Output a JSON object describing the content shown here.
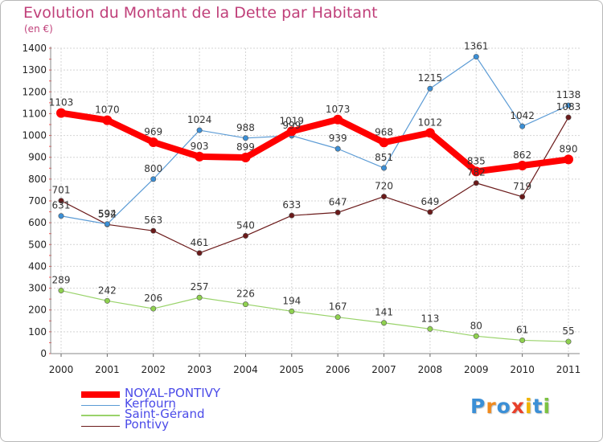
{
  "chart_data": {
    "type": "line",
    "title": "Evolution du Montant de la Dette par Habitant",
    "subtitle": "(en €)",
    "x": [
      "2000",
      "2001",
      "2002",
      "2003",
      "2004",
      "2005",
      "2006",
      "2007",
      "2008",
      "2009",
      "2010",
      "2011"
    ],
    "ylim": [
      0,
      1400
    ],
    "yticks": [
      0,
      100,
      200,
      300,
      400,
      500,
      600,
      700,
      800,
      900,
      1000,
      1100,
      1200,
      1300,
      1400
    ],
    "grid": true,
    "legend_position": "bottom-left",
    "series": [
      {
        "name": "NOYAL-PONTIVY",
        "color": "#ff0000",
        "values": [
          1103,
          1070,
          969,
          903,
          899,
          1019,
          1073,
          968,
          1012,
          835,
          862,
          890
        ]
      },
      {
        "name": "Kerfourn",
        "color": "#5b9bd5",
        "values": [
          631,
          594,
          800,
          1024,
          988,
          999,
          939,
          851,
          1215,
          1361,
          1042,
          1138
        ]
      },
      {
        "name": "Saint-Gérand",
        "color": "#99d36a",
        "values": [
          289,
          242,
          206,
          257,
          226,
          194,
          167,
          141,
          113,
          80,
          61,
          55
        ]
      },
      {
        "name": "Pontivy",
        "color": "#6b1a1a",
        "values": [
          701,
          592,
          563,
          461,
          540,
          633,
          647,
          720,
          649,
          782,
          719,
          1083
        ]
      }
    ]
  },
  "logo": {
    "letters": [
      "P",
      "r",
      "o",
      "x",
      "i",
      "t",
      "i"
    ],
    "colors": [
      "#3b8fd6",
      "#f08a1e",
      "#3b8fd6",
      "#e8402a",
      "#f0b400",
      "#3b8fd6",
      "#7cc242"
    ]
  }
}
